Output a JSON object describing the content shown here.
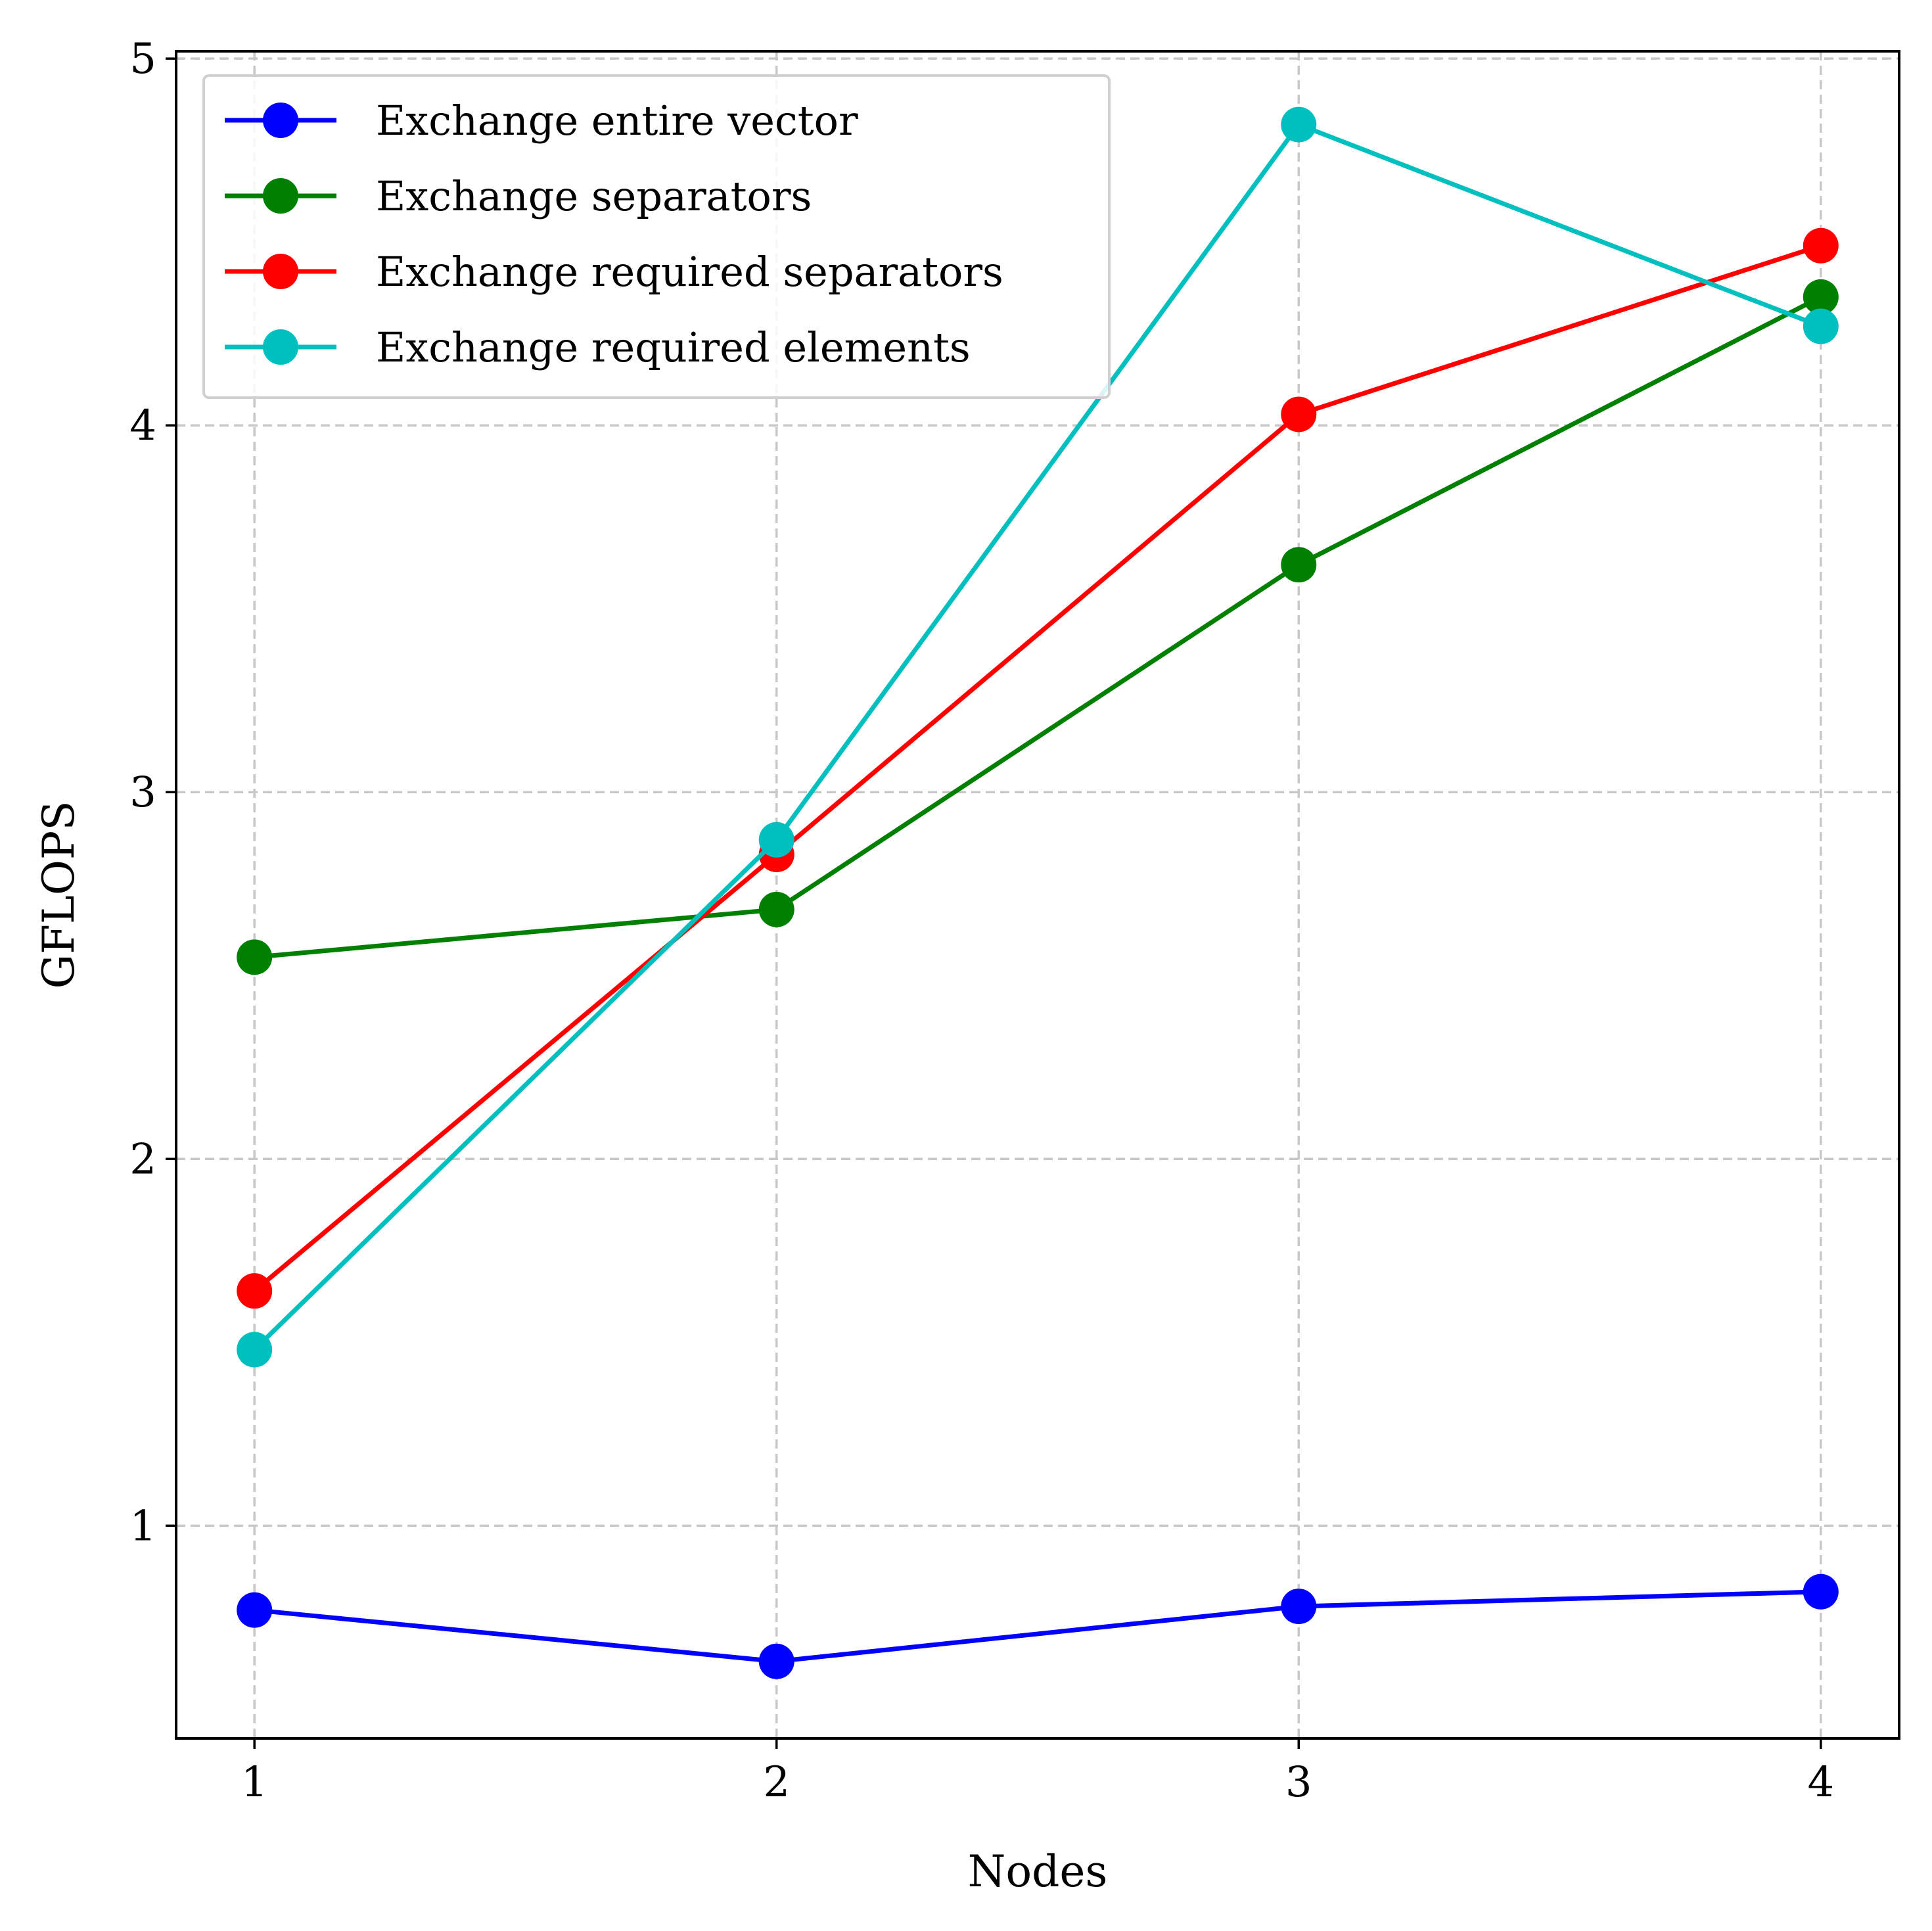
{
  "chart_data": {
    "type": "line",
    "title": "",
    "xlabel": "Nodes",
    "ylabel": "GFLOPS",
    "x": [
      1,
      2,
      3,
      4
    ],
    "xticks": [
      1,
      2,
      3,
      4
    ],
    "yticks": [
      1,
      2,
      3,
      4,
      5
    ],
    "xlim": [
      0.85,
      4.15
    ],
    "ylim": [
      0.42,
      5.02
    ],
    "grid": true,
    "legend_position": "top-left",
    "series": [
      {
        "name": "Exchange entire vector",
        "color": "#0000ff",
        "marker": "circle",
        "values": [
          0.77,
          0.63,
          0.78,
          0.82
        ]
      },
      {
        "name": "Exchange separators",
        "color": "#008000",
        "marker": "circle",
        "values": [
          2.55,
          2.68,
          3.62,
          4.35
        ]
      },
      {
        "name": "Exchange required separators",
        "color": "#ff0000",
        "marker": "circle",
        "values": [
          1.64,
          2.83,
          4.03,
          4.49
        ]
      },
      {
        "name": "Exchange required elements",
        "color": "#00bfbf",
        "marker": "circle",
        "values": [
          1.48,
          2.87,
          4.82,
          4.27
        ]
      }
    ]
  }
}
